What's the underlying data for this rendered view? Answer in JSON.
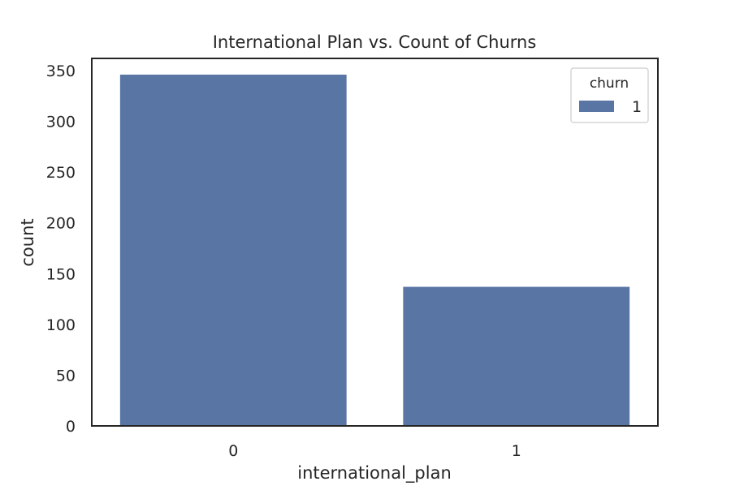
{
  "chart_data": {
    "type": "bar",
    "title": "International Plan vs. Count of Churns",
    "xlabel": "international_plan",
    "ylabel": "count",
    "categories": [
      "0",
      "1"
    ],
    "series": [
      {
        "name": "1",
        "values": [
          346,
          137
        ],
        "color": "#5975a4"
      }
    ],
    "ylim": [
      0,
      362
    ],
    "yticks": [
      0,
      50,
      100,
      150,
      200,
      250,
      300,
      350
    ],
    "legend": {
      "title": "churn",
      "placement": "top-right"
    },
    "grid": false
  }
}
